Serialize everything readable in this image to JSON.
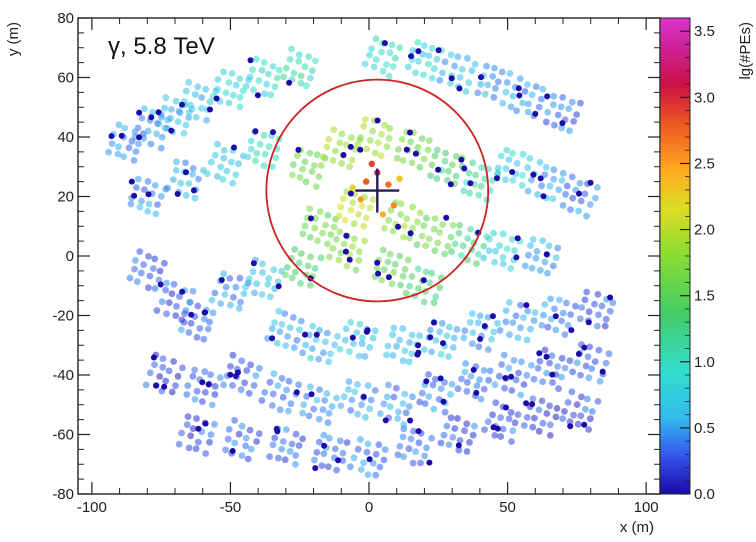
{
  "chart_data": {
    "type": "scatter",
    "annotation": "γ, 5.8 TeV",
    "xlabel": "x (m)",
    "ylabel": "y (m)",
    "colorbar_label": "lg(#PEs)",
    "xlim": [
      -105,
      105
    ],
    "ylim": [
      -80,
      80
    ],
    "x_ticks": [
      -100,
      -50,
      0,
      50,
      100
    ],
    "y_ticks": [
      -80,
      -60,
      -40,
      -20,
      0,
      20,
      40,
      60,
      80
    ],
    "colorbar_range": [
      0.0,
      3.6
    ],
    "colorbar_ticks": [
      0.0,
      0.5,
      1.0,
      1.5,
      2.0,
      2.5,
      3.0,
      3.5
    ],
    "core_position": [
      3,
      22
    ],
    "circle": {
      "center": [
        3,
        22
      ],
      "radius": 40,
      "color": "#cc2222"
    },
    "grid": false,
    "detector_blocks": [
      {
        "x": -88,
        "y": 38,
        "lgpe": 0.45
      },
      {
        "x": -78,
        "y": 43,
        "lgpe": 0.5
      },
      {
        "x": -70,
        "y": 47,
        "lgpe": 0.55
      },
      {
        "x": -62,
        "y": 52,
        "lgpe": 0.65
      },
      {
        "x": -50,
        "y": 56,
        "lgpe": 0.8
      },
      {
        "x": -38,
        "y": 60,
        "lgpe": 0.9
      },
      {
        "x": -25,
        "y": 63,
        "lgpe": 1.0
      },
      {
        "x": 5,
        "y": 67,
        "lgpe": 1.0
      },
      {
        "x": 20,
        "y": 66,
        "lgpe": 0.8
      },
      {
        "x": 32,
        "y": 62,
        "lgpe": 0.6
      },
      {
        "x": 45,
        "y": 58,
        "lgpe": 0.5
      },
      {
        "x": 57,
        "y": 53,
        "lgpe": 0.4
      },
      {
        "x": 70,
        "y": 48,
        "lgpe": 0.35
      },
      {
        "x": -80,
        "y": 20,
        "lgpe": 0.45
      },
      {
        "x": -66,
        "y": 26,
        "lgpe": 0.55
      },
      {
        "x": -52,
        "y": 31,
        "lgpe": 0.7
      },
      {
        "x": -38,
        "y": 36,
        "lgpe": 0.95
      },
      {
        "x": -22,
        "y": 30,
        "lgpe": 1.6
      },
      {
        "x": -10,
        "y": 36,
        "lgpe": 1.9
      },
      {
        "x": 2,
        "y": 40,
        "lgpe": 1.9
      },
      {
        "x": 16,
        "y": 36,
        "lgpe": 1.6
      },
      {
        "x": 28,
        "y": 30,
        "lgpe": 1.4
      },
      {
        "x": 40,
        "y": 25,
        "lgpe": 1.1
      },
      {
        "x": 52,
        "y": 30,
        "lgpe": 0.8
      },
      {
        "x": 64,
        "y": 25,
        "lgpe": 0.55
      },
      {
        "x": 76,
        "y": 20,
        "lgpe": 0.4
      },
      {
        "x": -18,
        "y": 10,
        "lgpe": 1.6
      },
      {
        "x": -5,
        "y": 16,
        "lgpe": 2.0
      },
      {
        "x": 12,
        "y": 12,
        "lgpe": 1.8
      },
      {
        "x": 24,
        "y": 7,
        "lgpe": 1.6
      },
      {
        "x": 36,
        "y": 4,
        "lgpe": 1.2
      },
      {
        "x": 48,
        "y": 2,
        "lgpe": 0.8
      },
      {
        "x": 62,
        "y": 0,
        "lgpe": 0.55
      },
      {
        "x": -24,
        "y": -4,
        "lgpe": 1.4
      },
      {
        "x": -8,
        "y": 2,
        "lgpe": 1.7
      },
      {
        "x": 8,
        "y": -4,
        "lgpe": 1.5
      },
      {
        "x": 20,
        "y": -10,
        "lgpe": 1.3
      },
      {
        "x": -80,
        "y": -5,
        "lgpe": 0.3
      },
      {
        "x": -70,
        "y": -15,
        "lgpe": 0.3
      },
      {
        "x": -62,
        "y": -22,
        "lgpe": 0.35
      },
      {
        "x": -50,
        "y": -12,
        "lgpe": 0.45
      },
      {
        "x": -38,
        "y": -8,
        "lgpe": 0.6
      },
      {
        "x": -30,
        "y": -25,
        "lgpe": 0.55
      },
      {
        "x": -18,
        "y": -30,
        "lgpe": 0.6
      },
      {
        "x": -4,
        "y": -28,
        "lgpe": 0.7
      },
      {
        "x": 12,
        "y": -30,
        "lgpe": 0.65
      },
      {
        "x": 26,
        "y": -28,
        "lgpe": 0.6
      },
      {
        "x": 40,
        "y": -25,
        "lgpe": 0.5
      },
      {
        "x": 54,
        "y": -22,
        "lgpe": 0.45
      },
      {
        "x": 68,
        "y": -20,
        "lgpe": 0.4
      },
      {
        "x": 82,
        "y": -18,
        "lgpe": 0.3
      },
      {
        "x": -74,
        "y": -40,
        "lgpe": 0.25
      },
      {
        "x": -60,
        "y": -44,
        "lgpe": 0.3
      },
      {
        "x": -46,
        "y": -40,
        "lgpe": 0.35
      },
      {
        "x": -32,
        "y": -46,
        "lgpe": 0.4
      },
      {
        "x": -18,
        "y": -50,
        "lgpe": 0.45
      },
      {
        "x": -4,
        "y": -48,
        "lgpe": 0.5
      },
      {
        "x": 10,
        "y": -50,
        "lgpe": 0.45
      },
      {
        "x": 24,
        "y": -46,
        "lgpe": 0.4
      },
      {
        "x": 38,
        "y": -42,
        "lgpe": 0.4
      },
      {
        "x": 52,
        "y": -40,
        "lgpe": 0.35
      },
      {
        "x": 66,
        "y": -38,
        "lgpe": 0.3
      },
      {
        "x": 80,
        "y": -36,
        "lgpe": 0.3
      },
      {
        "x": -62,
        "y": -60,
        "lgpe": 0.25
      },
      {
        "x": -46,
        "y": -62,
        "lgpe": 0.3
      },
      {
        "x": -30,
        "y": -64,
        "lgpe": 0.35
      },
      {
        "x": -14,
        "y": -66,
        "lgpe": 0.35
      },
      {
        "x": 0,
        "y": -68,
        "lgpe": 0.4
      },
      {
        "x": 16,
        "y": -64,
        "lgpe": 0.35
      },
      {
        "x": 32,
        "y": -60,
        "lgpe": 0.3
      },
      {
        "x": 48,
        "y": -56,
        "lgpe": 0.3
      },
      {
        "x": 62,
        "y": -54,
        "lgpe": 0.25
      },
      {
        "x": 76,
        "y": -52,
        "lgpe": 0.25
      }
    ]
  }
}
